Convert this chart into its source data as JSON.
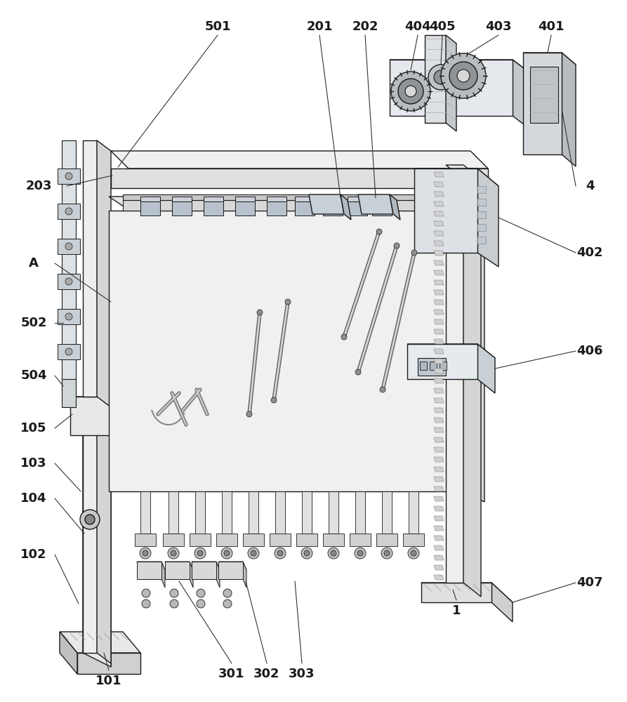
{
  "bg_color": "#ffffff",
  "lc": "#1a1a1a",
  "lw": 1.0,
  "fig_w": 8.93,
  "fig_h": 10.0,
  "label_fs": 13,
  "annotation_lw": 0.8,
  "annotation_color": "#333333"
}
